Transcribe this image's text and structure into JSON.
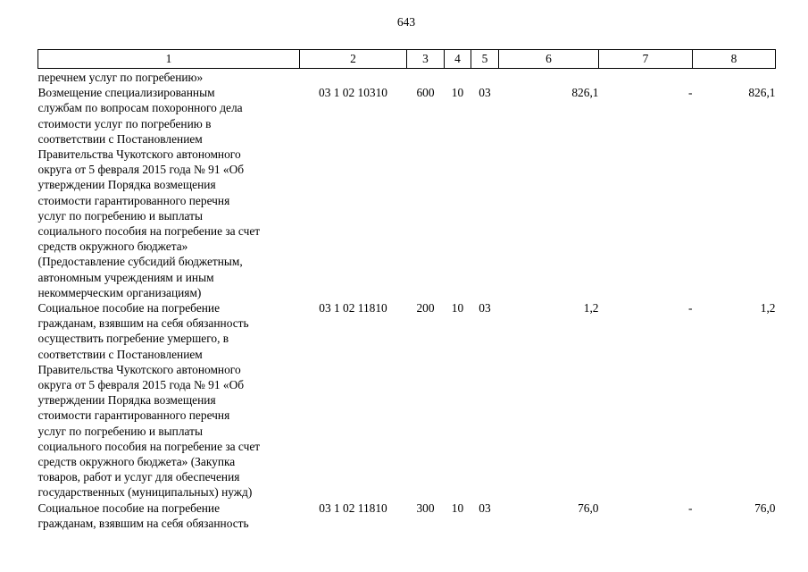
{
  "page_number": "643",
  "colors": {
    "text": "#000000",
    "background": "#ffffff",
    "border": "#000000"
  },
  "table": {
    "column_headers": [
      "1",
      "2",
      "3",
      "4",
      "5",
      "6",
      "7",
      "8"
    ],
    "rows": [
      {
        "cells": [
          "перечнем услуг по погребению»",
          "",
          "",
          "",
          "",
          "",
          "",
          ""
        ]
      },
      {
        "cells": [
          "Возмещение специализированным\nслужбам по вопросам похоронного дела\nстоимости услуг по погребению в\nсоответствии с Постановлением\nПравительства Чукотского автономного\nокруга от 5 февраля 2015 года № 91 «Об\nутверждении Порядка возмещения\nстоимости гарантированного перечня\nуслуг по погребению и выплаты\nсоциального пособия на погребение за счет\nсредств окружного бюджета»\n(Предоставление субсидий бюджетным,\nавтономным учреждениям и иным\nнекоммерческим организациям)",
          "03 1 02 10310",
          "600",
          "10",
          "03",
          "826,1",
          "-",
          "826,1"
        ]
      },
      {
        "cells": [
          "Социальное пособие на погребение\nгражданам, взявшим на себя обязанность\nосуществить погребение умершего, в\nсоответствии с Постановлением\nПравительства Чукотского автономного\nокруга от 5 февраля 2015 года № 91 «Об\nутверждении Порядка возмещения\nстоимости гарантированного перечня\nуслуг по погребению и выплаты\nсоциального пособия на погребение за счет\nсредств окружного бюджета» (Закупка\nтоваров, работ и услуг для обеспечения\nгосударственных (муниципальных) нужд)",
          "03 1 02 11810",
          "200",
          "10",
          "03",
          "1,2",
          "-",
          "1,2"
        ]
      },
      {
        "cells": [
          "Социальное пособие на погребение\nгражданам, взявшим на себя обязанность",
          "03 1 02 11810",
          "300",
          "10",
          "03",
          "76,0",
          "-",
          "76,0"
        ]
      }
    ]
  }
}
